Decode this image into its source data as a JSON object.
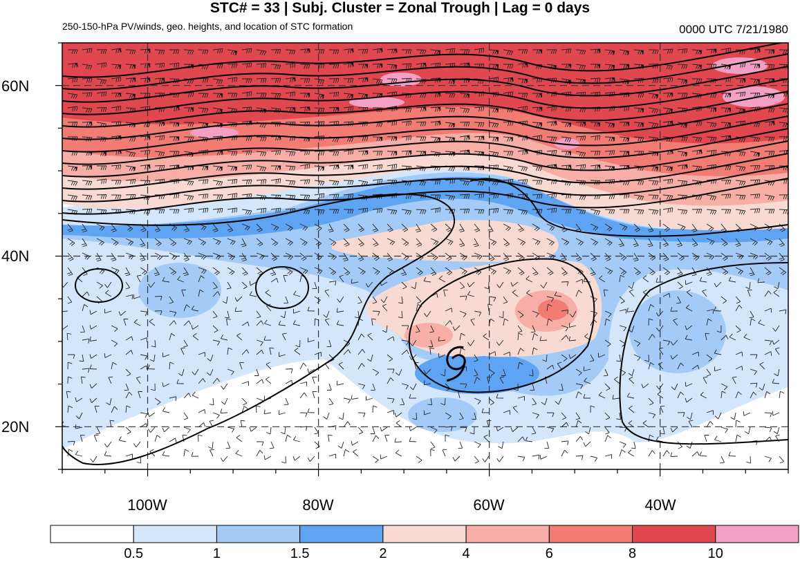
{
  "header": {
    "title": "STC# = 33 | Subj. Cluster = Zonal Trough | Lag = 0 days",
    "subtitle": "250-150-hPa PV/winds, geo. heights, and location of STC formation",
    "timestamp": "0000 UTC  7/21/1980"
  },
  "map": {
    "lat_labels": [
      "60N",
      "40N",
      "20N"
    ],
    "lon_labels": [
      "100W",
      "80W",
      "60W",
      "40W"
    ],
    "storm_symbol": "tropical-cyclone-symbol"
  },
  "colorbar": {
    "labels": [
      "0.5",
      "1",
      "1.5",
      "2",
      "4",
      "6",
      "8",
      "10"
    ],
    "colors": [
      "#ffffff",
      "#d3e6fb",
      "#a4cbf7",
      "#5fa4f2",
      "#f8dad2",
      "#f7aea6",
      "#f27b74",
      "#e0474e",
      "#f4a0c4"
    ]
  },
  "chart_data": {
    "type": "heatmap",
    "title": "STC# = 33 | Subj. Cluster = Zonal Trough | Lag = 0 days",
    "subtitle": "250-150-hPa PV/winds, geo. heights, and location of STC formation",
    "xlabel": "",
    "ylabel": "",
    "lon_range": [
      -110,
      -25
    ],
    "lat_range": [
      15,
      65
    ],
    "x_ticks": [
      "100W",
      "80W",
      "60W",
      "40W"
    ],
    "y_ticks": [
      "60N",
      "40N",
      "20N"
    ],
    "color_levels": [
      0.5,
      1,
      1.5,
      2,
      4,
      6,
      8,
      10
    ],
    "colors": [
      "#ffffff",
      "#d3e6fb",
      "#a4cbf7",
      "#5fa4f2",
      "#f8dad2",
      "#f7aea6",
      "#f27b74",
      "#e0474e",
      "#f4a0c4"
    ],
    "storm_location": {
      "lon": -64,
      "lat": 27.5
    },
    "grid": true
  }
}
